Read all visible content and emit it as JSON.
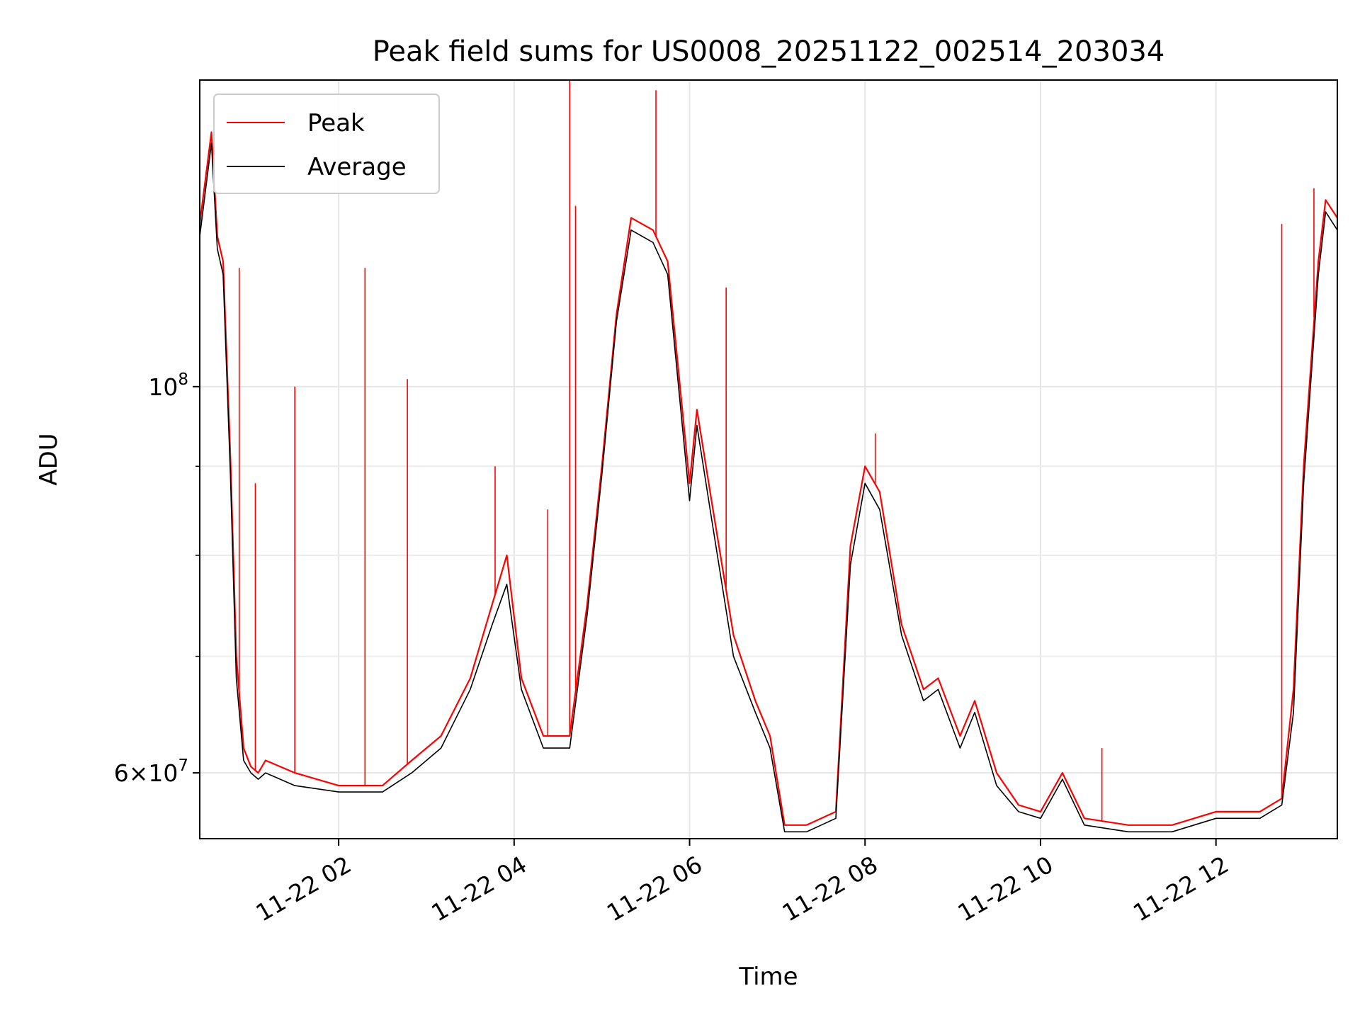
{
  "chart_data": {
    "type": "line",
    "title": "Peak field sums for US0008_20251122_002514_203034",
    "xlabel": "Time",
    "ylabel": "ADU",
    "x_range": [
      "2025-11-22 00:25",
      "2025-11-22 13:23"
    ],
    "ylim": [
      55000000,
      150000000
    ],
    "y_scale": "log",
    "grid": true,
    "legend_position": "upper-left",
    "x_ticks": [
      {
        "t": "2025-11-22 02:00",
        "label": "11-22 02"
      },
      {
        "t": "2025-11-22 04:00",
        "label": "11-22 04"
      },
      {
        "t": "2025-11-22 06:00",
        "label": "11-22 06"
      },
      {
        "t": "2025-11-22 08:00",
        "label": "11-22 08"
      },
      {
        "t": "2025-11-22 10:00",
        "label": "11-22 10"
      },
      {
        "t": "2025-11-22 12:00",
        "label": "11-22 12"
      }
    ],
    "y_ticks_major": [
      {
        "value": 60000000,
        "base": "6",
        "exp": "7"
      },
      {
        "value": 100000000,
        "base": "",
        "exp": "8"
      }
    ],
    "y_ticks_minor": [
      70000000,
      80000000,
      90000000
    ],
    "series": [
      {
        "name": "Peak",
        "color": "#ff0000",
        "t": [
          "2025-11-22 00:25",
          "2025-11-22 00:33",
          "2025-11-22 00:37",
          "2025-11-22 00:41",
          "2025-11-22 00:46",
          "2025-11-22 00:50",
          "2025-11-22 00:55",
          "2025-11-22 01:00",
          "2025-11-22 01:05",
          "2025-11-22 01:10",
          "2025-11-22 01:30",
          "2025-11-22 02:00",
          "2025-11-22 02:30",
          "2025-11-22 02:50",
          "2025-11-22 03:10",
          "2025-11-22 03:30",
          "2025-11-22 03:45",
          "2025-11-22 03:55",
          "2025-11-22 04:05",
          "2025-11-22 04:20",
          "2025-11-22 04:38",
          "2025-11-22 04:50",
          "2025-11-22 05:00",
          "2025-11-22 05:10",
          "2025-11-22 05:20",
          "2025-11-22 05:35",
          "2025-11-22 05:45",
          "2025-11-22 06:00",
          "2025-11-22 06:05",
          "2025-11-22 06:15",
          "2025-11-22 06:30",
          "2025-11-22 06:45",
          "2025-11-22 06:55",
          "2025-11-22 07:05",
          "2025-11-22 07:20",
          "2025-11-22 07:40",
          "2025-11-22 07:50",
          "2025-11-22 08:00",
          "2025-11-22 08:10",
          "2025-11-22 08:25",
          "2025-11-22 08:40",
          "2025-11-22 08:50",
          "2025-11-22 09:05",
          "2025-11-22 09:15",
          "2025-11-22 09:30",
          "2025-11-22 09:45",
          "2025-11-22 10:00",
          "2025-11-22 10:15",
          "2025-11-22 10:30",
          "2025-11-22 11:00",
          "2025-11-22 11:30",
          "2025-11-22 12:00",
          "2025-11-22 12:30",
          "2025-11-22 12:45",
          "2025-11-22 12:53",
          "2025-11-22 13:00",
          "2025-11-22 13:10",
          "2025-11-22 13:15",
          "2025-11-22 13:23"
        ],
        "values": [
          124000000,
          140000000,
          122000000,
          118000000,
          91000000,
          70000000,
          62000000,
          60500000,
          60000000,
          61000000,
          60000000,
          59000000,
          59000000,
          61000000,
          63000000,
          68000000,
          75000000,
          80000000,
          68000000,
          63000000,
          63000000,
          75000000,
          90000000,
          110000000,
          125000000,
          123000000,
          118000000,
          88000000,
          97000000,
          86000000,
          72000000,
          66000000,
          63000000,
          56000000,
          56000000,
          57000000,
          81000000,
          90000000,
          87000000,
          73000000,
          67000000,
          68000000,
          63000000,
          66000000,
          60000000,
          57500000,
          57000000,
          60000000,
          56500000,
          56000000,
          56000000,
          57000000,
          57000000,
          58000000,
          67000000,
          90000000,
          118000000,
          128000000,
          125000000
        ],
        "spikes": [
          {
            "t": "2025-11-22 00:52",
            "value": 117000000
          },
          {
            "t": "2025-11-22 01:03",
            "value": 88000000
          },
          {
            "t": "2025-11-22 01:30",
            "value": 100000000
          },
          {
            "t": "2025-11-22 02:18",
            "value": 117000000
          },
          {
            "t": "2025-11-22 02:47",
            "value": 101000000
          },
          {
            "t": "2025-11-22 03:47",
            "value": 90000000
          },
          {
            "t": "2025-11-22 04:23",
            "value": 85000000
          },
          {
            "t": "2025-11-22 04:38",
            "value": 152000000
          },
          {
            "t": "2025-11-22 04:42",
            "value": 127000000
          },
          {
            "t": "2025-11-22 05:37",
            "value": 148000000
          },
          {
            "t": "2025-11-22 06:25",
            "value": 114000000
          },
          {
            "t": "2025-11-22 08:07",
            "value": 94000000
          },
          {
            "t": "2025-11-22 10:42",
            "value": 62000000
          },
          {
            "t": "2025-11-22 12:45",
            "value": 124000000
          },
          {
            "t": "2025-11-22 13:07",
            "value": 130000000
          }
        ]
      },
      {
        "name": "Average",
        "color": "#000000",
        "t": [
          "2025-11-22 00:25",
          "2025-11-22 00:33",
          "2025-11-22 00:37",
          "2025-11-22 00:41",
          "2025-11-22 00:46",
          "2025-11-22 00:50",
          "2025-11-22 00:55",
          "2025-11-22 01:00",
          "2025-11-22 01:05",
          "2025-11-22 01:10",
          "2025-11-22 01:30",
          "2025-11-22 02:00",
          "2025-11-22 02:30",
          "2025-11-22 02:50",
          "2025-11-22 03:10",
          "2025-11-22 03:30",
          "2025-11-22 03:45",
          "2025-11-22 03:55",
          "2025-11-22 04:05",
          "2025-11-22 04:20",
          "2025-11-22 04:38",
          "2025-11-22 04:50",
          "2025-11-22 05:00",
          "2025-11-22 05:10",
          "2025-11-22 05:20",
          "2025-11-22 05:35",
          "2025-11-22 05:45",
          "2025-11-22 06:00",
          "2025-11-22 06:05",
          "2025-11-22 06:15",
          "2025-11-22 06:30",
          "2025-11-22 06:45",
          "2025-11-22 06:55",
          "2025-11-22 07:05",
          "2025-11-22 07:20",
          "2025-11-22 07:40",
          "2025-11-22 07:50",
          "2025-11-22 08:00",
          "2025-11-22 08:10",
          "2025-11-22 08:25",
          "2025-11-22 08:40",
          "2025-11-22 08:50",
          "2025-11-22 09:05",
          "2025-11-22 09:15",
          "2025-11-22 09:30",
          "2025-11-22 09:45",
          "2025-11-22 10:00",
          "2025-11-22 10:15",
          "2025-11-22 10:30",
          "2025-11-22 11:00",
          "2025-11-22 11:30",
          "2025-11-22 12:00",
          "2025-11-22 12:30",
          "2025-11-22 12:45",
          "2025-11-22 12:53",
          "2025-11-22 13:00",
          "2025-11-22 13:10",
          "2025-11-22 13:15",
          "2025-11-22 13:23"
        ],
        "values": [
          122000000,
          138000000,
          120000000,
          116000000,
          89000000,
          68000000,
          61000000,
          60000000,
          59500000,
          60000000,
          59000000,
          58500000,
          58500000,
          60000000,
          62000000,
          67000000,
          73000000,
          77000000,
          67000000,
          62000000,
          62000000,
          74000000,
          89000000,
          109000000,
          123000000,
          121000000,
          116000000,
          86000000,
          95000000,
          84000000,
          70000000,
          65000000,
          62000000,
          55500000,
          55500000,
          56500000,
          79000000,
          88000000,
          85000000,
          72000000,
          66000000,
          67000000,
          62000000,
          65000000,
          59000000,
          57000000,
          56500000,
          59500000,
          56000000,
          55500000,
          55500000,
          56500000,
          56500000,
          57500000,
          65000000,
          88000000,
          116000000,
          126000000,
          123000000
        ]
      }
    ]
  }
}
